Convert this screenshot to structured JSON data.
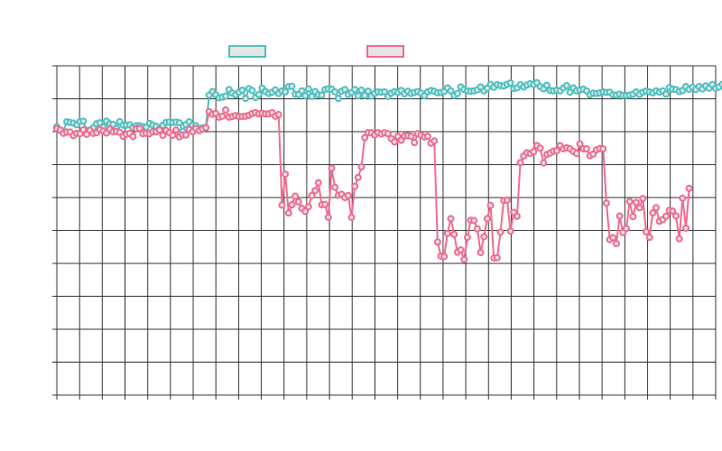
{
  "chart_data": {
    "type": "line",
    "title": "",
    "xlabel": "",
    "ylabel": "",
    "x_count": 200,
    "ylim": [
      0,
      10
    ],
    "grid": true,
    "legend": {
      "placement": "top-center",
      "entries": [
        "",
        ""
      ]
    },
    "series": [
      {
        "color": "#4bc0c0",
        "fill": "#e6e6e6",
        "values": [
          8.15,
          8.04,
          8.02,
          8.3,
          8.28,
          8.26,
          8.21,
          8.31,
          8.32,
          8.04,
          8.05,
          8.12,
          8.24,
          8.27,
          8.14,
          8.32,
          8.24,
          8.22,
          8.1,
          8.31,
          8.2,
          8.2,
          8.21,
          8.12,
          8.18,
          8.18,
          8.15,
          8.14,
          8.25,
          8.2,
          8.16,
          8.09,
          8.19,
          8.28,
          8.29,
          8.28,
          8.29,
          8.27,
          8.01,
          8.22,
          8.3,
          8.2,
          8.18,
          8.04,
          8.12,
          8.12,
          9.11,
          9.22,
          9.12,
          9.03,
          9.05,
          9.08,
          9.28,
          9.17,
          9.12,
          9.2,
          9.26,
          9.01,
          9.31,
          9.25,
          9.04,
          9.13,
          9.32,
          9.22,
          9.16,
          9.2,
          9.27,
          9.16,
          9.24,
          9.21,
          9.37,
          9.38,
          9.14,
          9.13,
          9.24,
          9.09,
          9.3,
          9.07,
          9.22,
          9.12,
          9.11,
          9.28,
          9.3,
          9.29,
          9.21,
          9.01,
          9.23,
          9.28,
          9.13,
          9.19,
          9.28,
          9.09,
          9.26,
          9.1,
          9.23,
          9.08,
          9.16,
          9.21,
          9.2,
          9.21,
          9.07,
          9.17,
          9.22,
          9.19,
          9.25,
          9.15,
          9.23,
          9.16,
          9.19,
          9.22,
          9.17,
          9.09,
          9.21,
          9.25,
          9.23,
          9.18,
          9.19,
          9.22,
          9.33,
          9.24,
          9.1,
          9.16,
          9.36,
          9.28,
          9.24,
          9.23,
          9.24,
          9.27,
          9.36,
          9.24,
          9.32,
          9.44,
          9.35,
          9.43,
          9.4,
          9.39,
          9.44,
          9.48,
          9.31,
          9.33,
          9.43,
          9.36,
          9.42,
          9.46,
          9.43,
          9.49,
          9.37,
          9.3,
          9.41,
          9.25,
          9.24,
          9.26,
          9.24,
          9.33,
          9.4,
          9.2,
          9.33,
          9.24,
          9.27,
          9.29,
          9.24,
          9.12,
          9.17,
          9.16,
          9.18,
          9.21,
          9.19,
          9.2,
          9.12,
          9.11,
          9.14,
          9.1,
          9.1,
          9.11,
          9.14,
          9.21,
          9.13,
          9.2,
          9.23,
          9.21,
          9.18,
          9.24,
          9.2,
          9.24,
          9.14,
          9.34,
          9.29,
          9.28,
          9.22,
          9.25,
          9.37,
          9.29,
          9.35,
          9.28,
          9.37,
          9.3,
          9.39,
          9.32,
          9.43,
          9.32,
          9.36,
          9.44,
          9.39,
          9.48
        ]
      },
      {
        "color": "#f0698e",
        "fill": "#e6e6e6",
        "values": [
          8.09,
          8.05,
          7.95,
          7.99,
          7.99,
          7.88,
          7.95,
          7.94,
          8.06,
          7.92,
          8.04,
          7.95,
          7.97,
          8.06,
          8.02,
          7.96,
          8.08,
          8.0,
          8.01,
          7.98,
          7.86,
          7.92,
          7.95,
          7.85,
          8.09,
          8.1,
          7.94,
          7.95,
          7.94,
          8.0,
          8.0,
          8.05,
          7.89,
          8.04,
          7.97,
          7.89,
          8.05,
          7.84,
          7.9,
          7.9,
          8.07,
          8.0,
          8.1,
          8.03,
          8.08,
          8.12,
          8.61,
          8.53,
          8.55,
          8.44,
          8.47,
          8.66,
          8.44,
          8.46,
          8.49,
          8.46,
          8.46,
          8.47,
          8.5,
          8.55,
          8.58,
          8.54,
          8.56,
          8.54,
          8.54,
          8.58,
          8.47,
          8.52,
          5.77,
          6.71,
          5.53,
          5.78,
          6.04,
          5.87,
          5.67,
          5.58,
          5.72,
          6.06,
          6.21,
          6.45,
          5.78,
          5.79,
          5.4,
          6.89,
          6.31,
          6.07,
          6.1,
          6.0,
          6.06,
          5.4,
          6.34,
          6.61,
          6.93,
          7.82,
          7.97,
          7.97,
          7.9,
          7.97,
          7.93,
          7.97,
          7.94,
          7.79,
          7.69,
          7.86,
          7.74,
          7.87,
          7.88,
          7.86,
          7.67,
          7.94,
          7.89,
          7.84,
          7.86,
          7.65,
          7.72,
          4.65,
          4.22,
          4.21,
          4.91,
          5.36,
          4.88,
          4.34,
          4.41,
          4.12,
          4.79,
          5.31,
          5.3,
          5.05,
          4.33,
          4.81,
          5.36,
          5.76,
          4.16,
          4.17,
          4.95,
          5.91,
          5.92,
          4.98,
          5.55,
          5.43,
          7.06,
          7.26,
          7.36,
          7.34,
          7.39,
          7.58,
          7.5,
          7.05,
          7.31,
          7.35,
          7.41,
          7.42,
          7.58,
          7.48,
          7.51,
          7.48,
          7.4,
          7.34,
          7.63,
          7.48,
          7.48,
          7.27,
          7.32,
          7.45,
          7.49,
          7.48,
          5.83,
          4.72,
          4.78,
          4.6,
          5.44,
          4.94,
          5.06,
          5.88,
          5.42,
          5.85,
          5.69,
          5.97,
          4.96,
          4.79,
          5.53,
          5.69,
          5.28,
          5.33,
          5.43,
          5.61,
          5.59,
          5.44,
          4.75,
          5.98,
          5.07,
          6.28
        ]
      }
    ]
  }
}
